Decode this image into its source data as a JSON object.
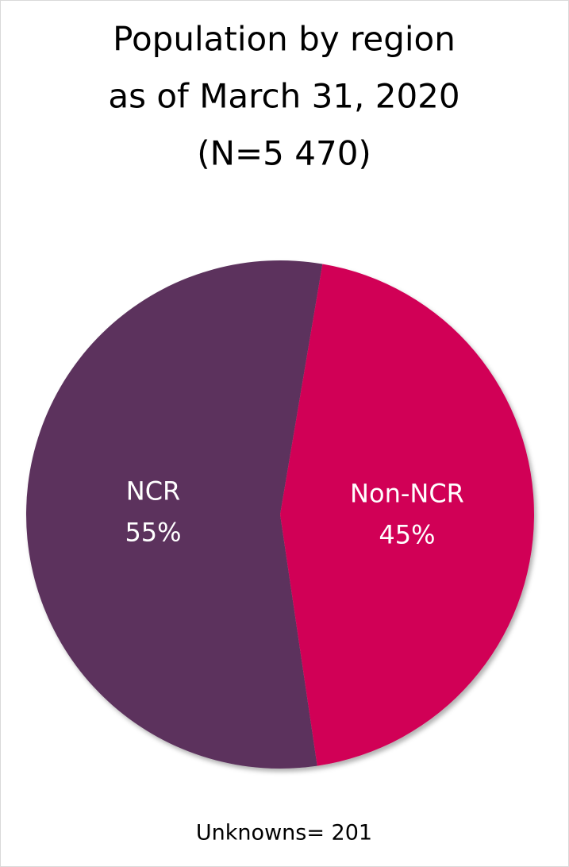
{
  "chart_data": {
    "type": "pie",
    "title": [
      "Population by region",
      "as of March 31, 2020",
      "(N=5 470)"
    ],
    "categories": [
      "NCR",
      "Non-NCR"
    ],
    "values": [
      55,
      45
    ],
    "value_labels": [
      "55%",
      "45%"
    ],
    "colors": [
      "#5c335d",
      "#d10056"
    ],
    "annotation": "Unknowns=  201"
  }
}
